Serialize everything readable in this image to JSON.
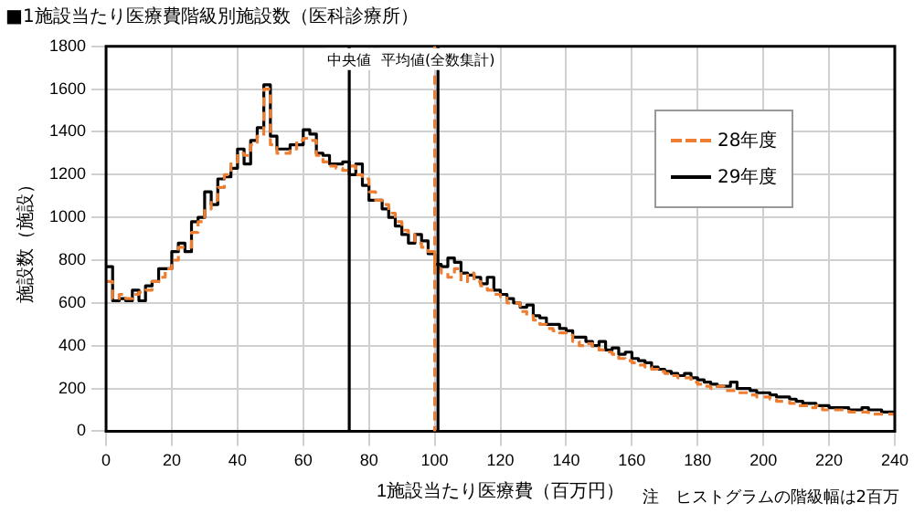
{
  "chart_data": {
    "type": "histogram",
    "title": "■1施設当たり医療費階級別施設数（医科診療所）",
    "xlabel": "1施設当たり医療費（百万円）",
    "ylabel": "施設数（施設）",
    "annotations": [
      "注　ヒストグラムの階級幅は2百万"
    ],
    "bins": [
      0,
      2,
      4,
      6,
      8,
      10,
      12,
      14,
      16,
      18,
      20,
      22,
      24,
      26,
      28,
      30,
      32,
      34,
      36,
      38,
      40,
      42,
      44,
      46,
      48,
      50,
      52,
      54,
      56,
      58,
      60,
      62,
      64,
      66,
      68,
      70,
      72,
      74,
      76,
      78,
      80,
      82,
      84,
      86,
      88,
      90,
      92,
      94,
      96,
      98,
      100,
      102,
      104,
      106,
      108,
      110,
      112,
      114,
      116,
      118,
      120,
      122,
      124,
      126,
      128,
      130,
      132,
      134,
      136,
      138,
      140,
      142,
      144,
      146,
      148,
      150,
      152,
      154,
      156,
      158,
      160,
      162,
      164,
      166,
      168,
      170,
      172,
      174,
      176,
      178,
      180,
      182,
      184,
      186,
      188,
      190,
      192,
      194,
      196,
      198,
      200,
      202,
      204,
      206,
      208,
      210,
      212,
      214,
      216,
      218,
      220,
      222,
      224,
      226,
      228,
      230,
      232,
      234,
      236,
      238,
      240
    ],
    "series": [
      {
        "name": "28年度",
        "color": "#ed7d31",
        "line_style": "dashed",
        "values": [
          700,
          620,
          640,
          620,
          640,
          650,
          660,
          700,
          720,
          760,
          800,
          860,
          860,
          930,
          980,
          1040,
          1080,
          1140,
          1200,
          1260,
          1300,
          1290,
          1340,
          1380,
          1600,
          1340,
          1300,
          1300,
          1320,
          1360,
          1370,
          1360,
          1290,
          1260,
          1240,
          1230,
          1220,
          1240,
          1200,
          1180,
          1120,
          1080,
          1060,
          1020,
          980,
          940,
          920,
          880,
          860,
          840,
          760,
          740,
          720,
          760,
          700,
          740,
          700,
          680,
          660,
          640,
          630,
          600,
          600,
          560,
          540,
          520,
          500,
          480,
          470,
          460,
          450,
          420,
          400,
          410,
          390,
          380,
          370,
          360,
          340,
          330,
          320,
          310,
          300,
          290,
          280,
          270,
          260,
          250,
          250,
          230,
          220,
          210,
          200,
          210,
          190,
          190,
          180,
          180,
          170,
          160,
          160,
          150,
          140,
          140,
          130,
          120,
          120,
          110,
          120,
          100,
          100,
          100,
          100,
          90,
          90,
          90,
          80,
          80,
          80,
          80
        ]
      },
      {
        "name": "29年度",
        "color": "#000000",
        "line_style": "solid",
        "values": [
          770,
          610,
          620,
          610,
          660,
          610,
          680,
          700,
          760,
          760,
          840,
          880,
          840,
          980,
          1000,
          1120,
          1060,
          1180,
          1190,
          1230,
          1320,
          1250,
          1360,
          1420,
          1620,
          1380,
          1320,
          1320,
          1340,
          1340,
          1410,
          1390,
          1300,
          1290,
          1250,
          1250,
          1260,
          1200,
          1250,
          1150,
          1080,
          1080,
          1040,
          1000,
          960,
          920,
          880,
          920,
          890,
          830,
          780,
          770,
          810,
          790,
          740,
          730,
          720,
          690,
          720,
          660,
          640,
          620,
          600,
          580,
          590,
          540,
          530,
          500,
          500,
          480,
          470,
          440,
          440,
          420,
          400,
          420,
          380,
          390,
          360,
          370,
          340,
          330,
          320,
          300,
          290,
          280,
          270,
          260,
          270,
          250,
          240,
          230,
          220,
          210,
          210,
          230,
          200,
          200,
          190,
          180,
          180,
          170,
          160,
          160,
          150,
          140,
          130,
          130,
          120,
          120,
          110,
          110,
          110,
          100,
          100,
          110,
          100,
          100,
          90,
          90
        ]
      }
    ],
    "xlim": [
      0,
      240
    ],
    "xticks": [
      0,
      20,
      40,
      60,
      80,
      100,
      120,
      140,
      160,
      180,
      200,
      220,
      240
    ],
    "ylim": [
      0,
      1800
    ],
    "yticks": [
      0,
      200,
      400,
      600,
      800,
      1000,
      1200,
      1400,
      1600,
      1800
    ],
    "ref_lines": [
      {
        "axis": "x",
        "value": 74,
        "label": "中央値",
        "color": "#000000"
      },
      {
        "axis": "x",
        "value": 100,
        "label": null,
        "color": "#ed7d31",
        "line_style": "dashed"
      },
      {
        "axis": "x",
        "value": 101,
        "label": "平均値(全数集計)",
        "color": "#000000"
      }
    ],
    "grid": true,
    "legend": "top right",
    "marker": "none"
  }
}
